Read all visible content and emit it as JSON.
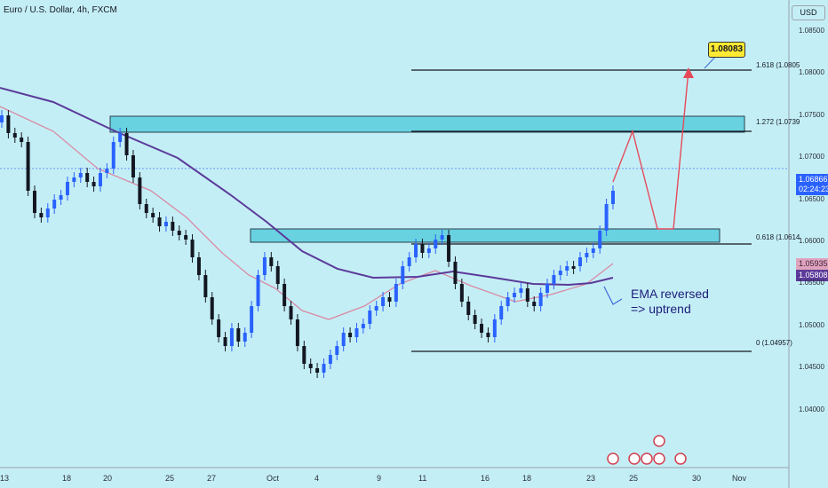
{
  "header": {
    "title": "Euro / U.S. Dollar, 4h, FXCM",
    "currency": "USD"
  },
  "price_tags": [
    {
      "label": "1.06866",
      "sub": "02:24:23",
      "color": "#2962ff"
    },
    {
      "label": "1.05935",
      "color": "#e0a3bd"
    },
    {
      "label": "1.05808",
      "color": "#5b3a9a"
    }
  ],
  "fib_levels": [
    {
      "label": "1.618 (1.0805⁠"
    },
    {
      "label": "1.272 (1.0739⁠"
    },
    {
      "label": "0.618 (1.0614⁠"
    },
    {
      "label": "0 (1.04957)"
    }
  ],
  "annotation": {
    "target": "1.08083",
    "note": "EMA reversed\n=> uptrend"
  },
  "chart_data": {
    "type": "candlestick",
    "title": "Euro / U.S. Dollar, 4h, FXCM",
    "y_unit": "USD",
    "y_ticks": [
      "1.08500",
      "1.08000",
      "1.07500",
      "1.07000",
      "1.06500",
      "1.06000",
      "1.05500",
      "1.05000",
      "1.04500",
      "1.04000"
    ],
    "ylim": [
      1.0375,
      1.0875
    ],
    "x_ticks": [
      "13",
      "18",
      "20",
      "25",
      "27",
      "Oct",
      "4",
      "9",
      "11",
      "16",
      "18",
      "23",
      "25",
      "30",
      "Nov"
    ],
    "last_price": 1.06866,
    "ema_fast_last": 1.05935,
    "ema_slow_last": 1.05808,
    "resistance_zones": [
      [
        1.0739,
        1.0755
      ],
      [
        1.0615,
        1.0629
      ]
    ],
    "fibonacci": [
      {
        "ratio": "1.618",
        "price": 1.0805
      },
      {
        "ratio": "1.272",
        "price": 1.0739
      },
      {
        "ratio": "0.618",
        "price": 1.0614
      },
      {
        "ratio": "0",
        "price": 1.04957
      }
    ],
    "projection_target": 1.08083,
    "series": [
      {
        "name": "EUR/USD"
      },
      {
        "name": ""
      },
      {
        "name": ""
      }
    ]
  },
  "colors": {
    "background": "#c4eef5",
    "zone": "#5fd0df",
    "ema_fast": "#d98aa6",
    "ema_slow": "#5b3a9a",
    "projection": "#e54a5a",
    "note_arrow": "#3c6bd8",
    "candle": "#2962ff"
  }
}
